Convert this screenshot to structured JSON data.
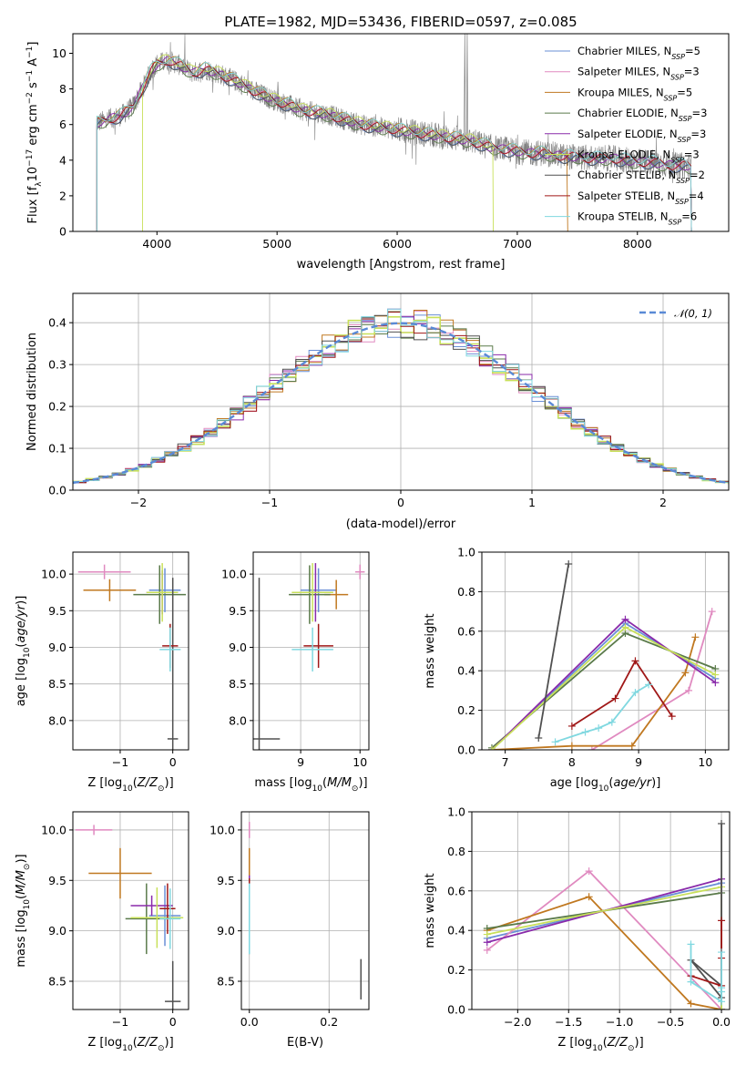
{
  "figure": {
    "title": "PLATE=1982, MJD=53436, FIBERID=0597, z=0.085",
    "models": [
      {
        "name": "Chabrier MILES",
        "nssp": "5",
        "color": "#6a8fd6"
      },
      {
        "name": "Salpeter MILES",
        "nssp": "3",
        "color": "#e08ac0"
      },
      {
        "name": "Kroupa MILES",
        "nssp": "5",
        "color": "#c07820"
      },
      {
        "name": "Chabrier ELODIE",
        "nssp": "3",
        "color": "#5a7a4a"
      },
      {
        "name": "Salpeter ELODIE",
        "nssp": "3",
        "color": "#8a2aaa"
      },
      {
        "name": "Kroupa ELODIE",
        "nssp": "3",
        "color": "#c8e05a"
      },
      {
        "name": "Chabrier STELIB",
        "nssp": "2",
        "color": "#505050"
      },
      {
        "name": "Salpeter STELIB",
        "nssp": "4",
        "color": "#a01818"
      },
      {
        "name": "Kroupa STELIB",
        "nssp": "6",
        "color": "#80d8e0"
      }
    ]
  },
  "chart_data": [
    {
      "type": "line",
      "title": "PLATE=1982, MJD=53436, FIBERID=0597, z=0.085",
      "xlabel": "wavelength [Angstrom, rest frame]",
      "ylabel_parts": [
        "Flux [f",
        "λ",
        "10",
        "−17",
        " erg cm",
        "−2",
        " s",
        "−1",
        " A",
        "−1",
        "]"
      ],
      "xlim": [
        3300,
        8760
      ],
      "ylim": [
        0,
        11.1
      ],
      "xticks": [
        4000,
        5000,
        6000,
        7000,
        8000
      ],
      "yticks": [
        0,
        2,
        4,
        6,
        8,
        10
      ],
      "legend": "top-right",
      "grid": false,
      "data_color": "#808080",
      "continuum": [
        [
          3500,
          6.1
        ],
        [
          3600,
          6.3
        ],
        [
          3700,
          6.5
        ],
        [
          3800,
          7.0
        ],
        [
          3900,
          8.3
        ],
        [
          3950,
          9.0
        ],
        [
          4000,
          9.4
        ],
        [
          4100,
          9.6
        ],
        [
          4200,
          9.3
        ],
        [
          4300,
          8.9
        ],
        [
          4400,
          9.1
        ],
        [
          4500,
          8.9
        ],
        [
          4600,
          8.6
        ],
        [
          4700,
          8.3
        ],
        [
          4800,
          7.9
        ],
        [
          4900,
          7.6
        ],
        [
          5000,
          7.3
        ],
        [
          5100,
          7.1
        ],
        [
          5200,
          6.8
        ],
        [
          5300,
          6.7
        ],
        [
          5400,
          6.6
        ],
        [
          5500,
          6.4
        ],
        [
          5600,
          6.2
        ],
        [
          5700,
          6.0
        ],
        [
          5800,
          5.9
        ],
        [
          5900,
          5.8
        ],
        [
          6000,
          5.7
        ],
        [
          6100,
          5.6
        ],
        [
          6200,
          5.5
        ],
        [
          6300,
          5.4
        ],
        [
          6400,
          5.3
        ],
        [
          6500,
          5.2
        ],
        [
          6600,
          5.1
        ],
        [
          6700,
          4.9
        ],
        [
          6800,
          4.7
        ],
        [
          6900,
          4.6
        ],
        [
          7000,
          4.5
        ],
        [
          7100,
          4.4
        ],
        [
          7200,
          4.4
        ],
        [
          7300,
          4.3
        ],
        [
          7400,
          4.2
        ],
        [
          7500,
          4.2
        ],
        [
          7600,
          4.1
        ],
        [
          7700,
          4.1
        ],
        [
          7800,
          4.1
        ],
        [
          7900,
          4.0
        ],
        [
          8000,
          3.9
        ],
        [
          8100,
          3.9
        ],
        [
          8200,
          3.8
        ],
        [
          8300,
          3.7
        ],
        [
          8400,
          3.7
        ],
        [
          8450,
          3.6
        ]
      ],
      "data_range": [
        3500,
        8450
      ],
      "emission_lines": [
        {
          "x": 6563,
          "y": 11.1
        },
        {
          "x": 6583,
          "y": 11.1
        },
        {
          "x": 5007,
          "y": 8.4
        },
        {
          "x": 4861,
          "y": 7.2
        }
      ],
      "model_ranges": [
        [
          3500,
          8450
        ],
        [
          3500,
          8450
        ],
        [
          3500,
          7420
        ],
        [
          3500,
          8450
        ],
        [
          3500,
          8450
        ],
        [
          3880,
          6800
        ],
        [
          3500,
          8450
        ],
        [
          3500,
          8450
        ],
        [
          3500,
          8450
        ]
      ]
    },
    {
      "type": "bar",
      "xlabel": "(data-model)/error",
      "ylabel": "Normed distribution",
      "xlim": [
        -2.5,
        2.5
      ],
      "ylim": [
        0,
        0.47
      ],
      "xticks": [
        -2,
        -1,
        0,
        1,
        2
      ],
      "xtick_labels": [
        "−2",
        "−1",
        "0",
        "1",
        "2"
      ],
      "yticks": [
        0.0,
        0.1,
        0.2,
        0.3,
        0.4
      ],
      "ytick_labels": [
        "0.0",
        "0.1",
        "0.2",
        "0.3",
        "0.4"
      ],
      "grid": true,
      "legend": "top-right",
      "reference_curve": {
        "name": "𝒩(0, 1)",
        "mean": 0,
        "sigma": 1,
        "color": "#5a8ad6"
      },
      "bin_width": 0.1
    },
    {
      "type": "scatter",
      "xlabel_parts": [
        "Z [log",
        "10",
        "(",
        "Z/Z",
        "⊙",
        ")]"
      ],
      "ylabel_parts": [
        "age  [log",
        "10",
        "(",
        "age/yr",
        ")]"
      ],
      "xlim": [
        -1.9,
        0.3
      ],
      "ylim": [
        7.6,
        10.3
      ],
      "xticks": [
        -1,
        0
      ],
      "xtick_labels": [
        "−1",
        "0"
      ],
      "yticks": [
        8.0,
        8.5,
        9.0,
        9.5,
        10.0
      ],
      "ytick_labels": [
        "8.0",
        "8.5",
        "9.0",
        "9.5",
        "10.0"
      ],
      "grid": true,
      "points": [
        {
          "series": 0,
          "x": -0.15,
          "y": 9.78,
          "xerr": 0.3,
          "yerr": 0.3
        },
        {
          "series": 1,
          "x": -1.3,
          "y": 10.03,
          "xerr": 0.5,
          "yerr": 0.1
        },
        {
          "series": 2,
          "x": -1.2,
          "y": 9.78,
          "xerr": 0.5,
          "yerr": 0.15
        },
        {
          "series": 3,
          "x": -0.25,
          "y": 9.72,
          "xerr": 0.5,
          "yerr": 0.4
        },
        {
          "series": 4,
          "x": -0.2,
          "y": 9.75,
          "xerr": 0.3,
          "yerr": 0.3
        },
        {
          "series": 5,
          "x": -0.2,
          "y": 9.75,
          "xerr": 0.3,
          "yerr": 0.4
        },
        {
          "series": 6,
          "x": 0.0,
          "y": 7.75,
          "xerr": 0.1,
          "yerr": 2.2
        },
        {
          "series": 7,
          "x": -0.05,
          "y": 9.02,
          "xerr": 0.15,
          "yerr": 0.3
        },
        {
          "series": 8,
          "x": -0.05,
          "y": 8.97,
          "xerr": 0.2,
          "yerr": 0.3
        }
      ]
    },
    {
      "type": "scatter",
      "xlabel_parts": [
        "mass [log",
        "10",
        "(",
        "M/M",
        "⊙",
        ")]"
      ],
      "xlim": [
        8.2,
        10.15
      ],
      "ylim": [
        7.6,
        10.3
      ],
      "xticks": [
        9,
        10
      ],
      "xtick_labels": [
        "9",
        "10"
      ],
      "yticks": [
        8.0,
        8.5,
        9.0,
        9.5,
        10.0
      ],
      "ytick_labels": [
        "8.0",
        "8.5",
        "9.0",
        "9.5",
        "10.0"
      ],
      "grid": true,
      "points": [
        {
          "series": 0,
          "x": 9.3,
          "y": 9.78,
          "xerr": 0.3,
          "yerr": 0.3
        },
        {
          "series": 1,
          "x": 10.0,
          "y": 10.03,
          "xerr": 0.08,
          "yerr": 0.1
        },
        {
          "series": 2,
          "x": 9.6,
          "y": 9.72,
          "xerr": 0.2,
          "yerr": 0.2
        },
        {
          "series": 3,
          "x": 9.15,
          "y": 9.72,
          "xerr": 0.35,
          "yerr": 0.4
        },
        {
          "series": 4,
          "x": 9.25,
          "y": 9.75,
          "xerr": 0.1,
          "yerr": 0.4
        },
        {
          "series": 5,
          "x": 9.2,
          "y": 9.75,
          "xerr": 0.35,
          "yerr": 0.4
        },
        {
          "series": 6,
          "x": 8.3,
          "y": 7.75,
          "xerr": 0.35,
          "yerr": 2.2
        },
        {
          "series": 7,
          "x": 9.3,
          "y": 9.02,
          "xerr": 0.25,
          "yerr": 0.3
        },
        {
          "series": 8,
          "x": 9.2,
          "y": 8.97,
          "xerr": 0.35,
          "yerr": 0.3
        }
      ]
    },
    {
      "type": "line",
      "xlabel_parts": [
        "age  [log",
        "10",
        "(",
        "age/yr",
        ")]"
      ],
      "ylabel": "mass weight",
      "xlim": [
        6.65,
        10.35
      ],
      "ylim": [
        0,
        1.0
      ],
      "xticks": [
        7,
        8,
        9,
        10
      ],
      "xtick_labels": [
        "7",
        "8",
        "9",
        "10"
      ],
      "yticks": [
        0.0,
        0.2,
        0.4,
        0.6,
        0.8,
        1.0
      ],
      "ytick_labels": [
        "0.0",
        "0.2",
        "0.4",
        "0.6",
        "0.8",
        "1.0"
      ],
      "grid": true,
      "series": [
        {
          "series": 0,
          "x": [
            6.8,
            8.8,
            10.15
          ],
          "y": [
            0.0,
            0.64,
            0.36
          ]
        },
        {
          "series": 1,
          "x": [
            8.3,
            9.75,
            10.1
          ],
          "y": [
            0.0,
            0.3,
            0.7
          ]
        },
        {
          "series": 2,
          "x": [
            6.8,
            8.0,
            8.9,
            9.7,
            9.85
          ],
          "y": [
            0.0,
            0.02,
            0.02,
            0.39,
            0.57
          ]
        },
        {
          "series": 3,
          "x": [
            6.8,
            8.8,
            10.15
          ],
          "y": [
            0.01,
            0.59,
            0.41
          ]
        },
        {
          "series": 4,
          "x": [
            6.8,
            8.8,
            10.15
          ],
          "y": [
            0.0,
            0.66,
            0.34
          ]
        },
        {
          "series": 5,
          "x": [
            6.8,
            8.8,
            10.15
          ],
          "y": [
            0.0,
            0.62,
            0.38
          ]
        },
        {
          "series": 6,
          "x": [
            7.5,
            7.95
          ],
          "y": [
            0.06,
            0.94
          ]
        },
        {
          "series": 7,
          "x": [
            8.0,
            8.65,
            8.95,
            9.5
          ],
          "y": [
            0.12,
            0.26,
            0.45,
            0.17
          ]
        },
        {
          "series": 8,
          "x": [
            7.75,
            8.2,
            8.4,
            8.6,
            8.95,
            9.15
          ],
          "y": [
            0.04,
            0.09,
            0.11,
            0.14,
            0.29,
            0.33
          ]
        }
      ]
    },
    {
      "type": "scatter",
      "xlabel_parts": [
        "Z [log",
        "10",
        "(",
        "Z/Z",
        "⊙",
        ")]"
      ],
      "ylabel_parts": [
        "mass [log",
        "10",
        "(",
        "M/M",
        "⊙",
        ")]"
      ],
      "xlim": [
        -1.9,
        0.3
      ],
      "ylim": [
        8.22,
        10.18
      ],
      "xticks": [
        -1,
        0
      ],
      "xtick_labels": [
        "−1",
        "0"
      ],
      "yticks": [
        8.5,
        9.0,
        9.5,
        10.0
      ],
      "ytick_labels": [
        "8.5",
        "9.0",
        "9.5",
        "10.0"
      ],
      "grid": true,
      "points": [
        {
          "series": 0,
          "x": -0.15,
          "y": 9.15,
          "xerr": 0.3,
          "yerr": 0.3
        },
        {
          "series": 1,
          "x": -1.5,
          "y": 10.0,
          "xerr": 0.35,
          "yerr": 0.05
        },
        {
          "series": 2,
          "x": -1.0,
          "y": 9.57,
          "xerr": 0.6,
          "yerr": 0.25
        },
        {
          "series": 3,
          "x": -0.5,
          "y": 9.12,
          "xerr": 0.4,
          "yerr": 0.35
        },
        {
          "series": 4,
          "x": -0.4,
          "y": 9.25,
          "xerr": 0.4,
          "yerr": 0.1
        },
        {
          "series": 5,
          "x": -0.3,
          "y": 9.13,
          "xerr": 0.5,
          "yerr": 0.3
        },
        {
          "series": 6,
          "x": 0.0,
          "y": 8.3,
          "xerr": 0.15,
          "yerr": 0.4
        },
        {
          "series": 7,
          "x": -0.1,
          "y": 9.22,
          "xerr": 0.15,
          "yerr": 0.25
        },
        {
          "series": 8,
          "x": -0.05,
          "y": 9.12,
          "xerr": 0.2,
          "yerr": 0.3
        }
      ]
    },
    {
      "type": "scatter",
      "xlabel": "E(B-V)",
      "xlim": [
        -0.02,
        0.3
      ],
      "ylim": [
        8.22,
        10.18
      ],
      "xticks": [
        0.0,
        0.2
      ],
      "xtick_labels": [
        "0.0",
        "0.2"
      ],
      "yticks": [
        8.5,
        9.0,
        9.5,
        10.0
      ],
      "ytick_labels": [
        "8.5",
        "9.0",
        "9.5",
        "10.0"
      ],
      "grid": true,
      "points": [
        {
          "series": 0,
          "x": 0.0,
          "y": 9.15,
          "xerr": 0.0,
          "yerr": 0.35
        },
        {
          "series": 1,
          "x": 0.0,
          "y": 10.0,
          "xerr": 0.0,
          "yerr": 0.08
        },
        {
          "series": 2,
          "x": 0.0,
          "y": 9.57,
          "xerr": 0.0,
          "yerr": 0.25
        },
        {
          "series": 3,
          "x": 0.0,
          "y": 9.12,
          "xerr": 0.0,
          "yerr": 0.35
        },
        {
          "series": 4,
          "x": 0.0,
          "y": 9.25,
          "xerr": 0.0,
          "yerr": 0.3
        },
        {
          "series": 5,
          "x": 0.0,
          "y": 9.13,
          "xerr": 0.0,
          "yerr": 0.35
        },
        {
          "series": 6,
          "x": 0.28,
          "y": 8.52,
          "xerr": 0.0,
          "yerr": 0.2
        },
        {
          "series": 7,
          "x": 0.0,
          "y": 9.22,
          "xerr": 0.0,
          "yerr": 0.3
        },
        {
          "series": 8,
          "x": 0.0,
          "y": 9.12,
          "xerr": 0.0,
          "yerr": 0.35
        }
      ]
    },
    {
      "type": "line",
      "xlabel_parts": [
        "Z [log",
        "10",
        "(",
        "Z/Z",
        "⊙",
        ")]"
      ],
      "ylabel": "mass weight",
      "xlim": [
        -2.45,
        0.08
      ],
      "ylim": [
        0,
        1.0
      ],
      "xticks": [
        -2.0,
        -1.5,
        -1.0,
        -0.5,
        0.0
      ],
      "xtick_labels": [
        "−2.0",
        "−1.5",
        "−1.0",
        "−0.5",
        "0.0"
      ],
      "yticks": [
        0.0,
        0.2,
        0.4,
        0.6,
        0.8,
        1.0
      ],
      "ytick_labels": [
        "0.0",
        "0.2",
        "0.4",
        "0.6",
        "0.8",
        "1.0"
      ],
      "grid": true,
      "series": [
        {
          "series": 0,
          "x": [
            -2.3,
            0.0,
            0.0
          ],
          "y": [
            0.36,
            0.64,
            0.0
          ]
        },
        {
          "series": 1,
          "x": [
            -2.3,
            -1.3,
            0.0
          ],
          "y": [
            0.3,
            0.7,
            0.0
          ]
        },
        {
          "series": 2,
          "x": [
            -2.3,
            -1.3,
            -0.3,
            0.0
          ],
          "y": [
            0.4,
            0.57,
            0.03,
            0.0
          ]
        },
        {
          "series": 3,
          "x": [
            -2.3,
            0.0,
            0.0
          ],
          "y": [
            0.41,
            0.59,
            0.0
          ]
        },
        {
          "series": 4,
          "x": [
            -2.3,
            0.0,
            0.0
          ],
          "y": [
            0.34,
            0.66,
            0.0
          ]
        },
        {
          "series": 5,
          "x": [
            -2.3,
            0.0,
            0.0
          ],
          "y": [
            0.38,
            0.62,
            0.0
          ]
        },
        {
          "series": 6,
          "x": [
            0.0,
            0.0,
            -0.3,
            0.0
          ],
          "y": [
            0.94,
            0.06,
            0.25,
            0.12
          ]
        },
        {
          "series": 7,
          "x": [
            -0.3,
            0.0,
            0.0,
            0.0
          ],
          "y": [
            0.17,
            0.12,
            0.45,
            0.26
          ]
        },
        {
          "series": 8,
          "x": [
            -0.3,
            -0.3,
            0.0,
            0.0,
            0.0,
            0.0
          ],
          "y": [
            0.33,
            0.14,
            0.04,
            0.29,
            0.11,
            0.09
          ]
        }
      ]
    }
  ]
}
